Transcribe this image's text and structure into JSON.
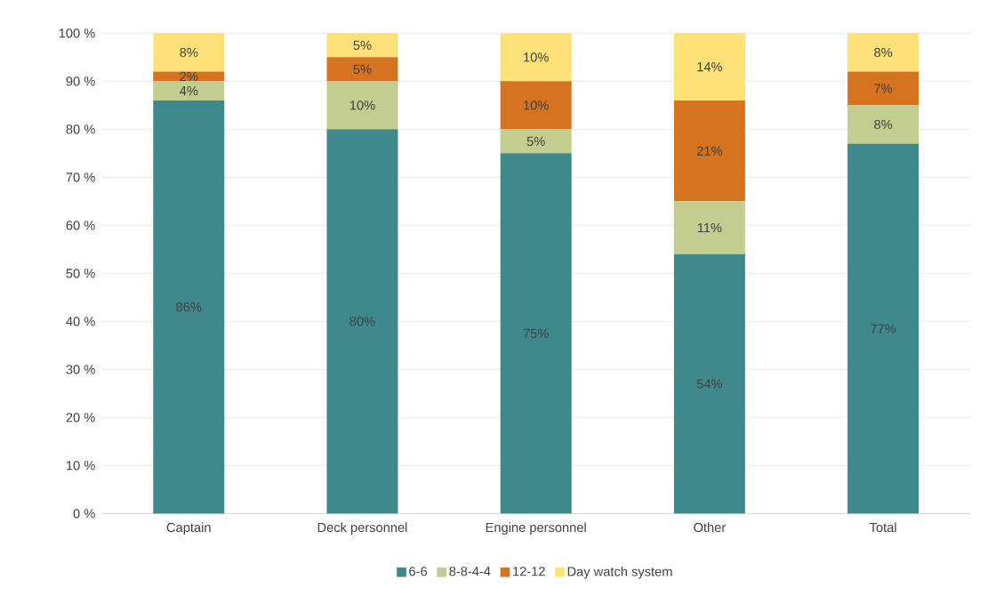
{
  "chart_data": {
    "type": "bar",
    "stacked": true,
    "categories": [
      "Captain",
      "Deck personnel",
      "Engine personnel",
      "Other",
      "Total"
    ],
    "series": [
      {
        "name": "6-6",
        "color": "#3f888c",
        "values": [
          86,
          80,
          75,
          54,
          77
        ],
        "value_labels": [
          "86%",
          "80%",
          "75%",
          "54%",
          "77%"
        ]
      },
      {
        "name": "8-8-4-4",
        "color": "#c3cd8f",
        "values": [
          4,
          10,
          5,
          11,
          8
        ],
        "value_labels": [
          "4%",
          "10%",
          "5%",
          "11%",
          "8%"
        ]
      },
      {
        "name": "12-12",
        "color": "#d5731f",
        "values": [
          2,
          5,
          10,
          21,
          7
        ],
        "value_labels": [
          "2%",
          "5%",
          "10%",
          "21%",
          "7%"
        ]
      },
      {
        "name": "Day watch system",
        "color": "#fde27a",
        "values": [
          8,
          5,
          10,
          14,
          8
        ],
        "value_labels": [
          "8%",
          "5%",
          "10%",
          "14%",
          "8%"
        ]
      }
    ],
    "ylim": [
      0,
      100
    ],
    "yticks": [
      {
        "value": 0,
        "label": "0 %"
      },
      {
        "value": 10,
        "label": "10 %"
      },
      {
        "value": 20,
        "label": "20 %"
      },
      {
        "value": 30,
        "label": "30 %"
      },
      {
        "value": 40,
        "label": "40 %"
      },
      {
        "value": 50,
        "label": "50 %"
      },
      {
        "value": 60,
        "label": "60 %"
      },
      {
        "value": 70,
        "label": "70 %"
      },
      {
        "value": 80,
        "label": "80 %"
      },
      {
        "value": 90,
        "label": "90 %"
      },
      {
        "value": 100,
        "label": "100 %"
      }
    ],
    "grid": "y",
    "legend": "bottom"
  }
}
